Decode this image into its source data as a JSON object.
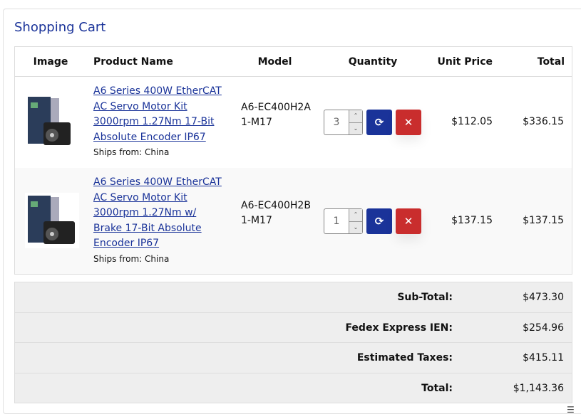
{
  "title": "Shopping Cart",
  "columns": [
    "Image",
    "Product Name",
    "Model",
    "Quantity",
    "Unit Price",
    "Total"
  ],
  "items": [
    {
      "name": "A6 Series 400W EtherCAT AC Servo Motor Kit 3000rpm 1.27Nm 17-Bit Absolute Encoder IP67",
      "ships": "Ships from: China",
      "model": "A6-EC400H2A1-M17",
      "quantity": "3",
      "unit_price": "$112.05",
      "total": "$336.15"
    },
    {
      "name": "A6 Series 400W EtherCAT AC Servo Motor Kit 3000rpm 1.27Nm w/ Brake 17-Bit Absolute Encoder IP67",
      "ships": "Ships from: China",
      "model": "A6-EC400H2B1-M17",
      "quantity": "1",
      "unit_price": "$137.15",
      "total": "$137.15"
    }
  ],
  "summary": [
    {
      "label": "Sub-Total:",
      "value": "$473.30"
    },
    {
      "label": "Fedex Express IEN:",
      "value": "$254.96"
    },
    {
      "label": "Estimated Taxes:",
      "value": "$415.11"
    },
    {
      "label": "Total:",
      "value": "$1,143.36"
    }
  ],
  "icons": {
    "update": "refresh-icon",
    "remove": "close-icon"
  },
  "colors": {
    "accent": "#1a3399",
    "danger": "#c92d2d"
  }
}
